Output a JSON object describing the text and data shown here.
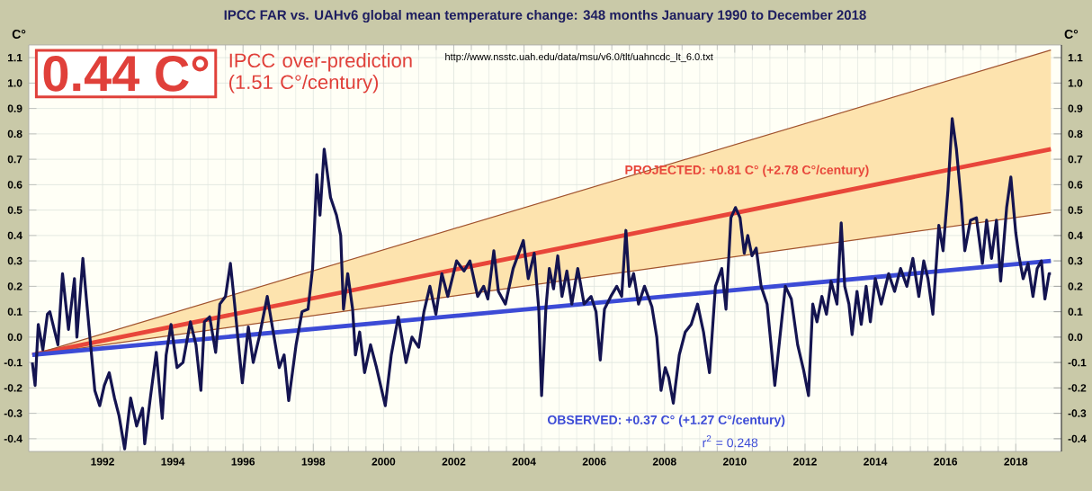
{
  "chart_data": {
    "type": "line",
    "title": "IPCC FAR vs. UAHv6 global mean temperature change: 348 months January 1990 to December 2018",
    "ylabel": "C°",
    "y2label": "C°",
    "annotations": [
      "0.44 C°",
      "IPCC over-prediction (1.51 C°/century)",
      "http://www.nsstc.uah.edu/data/msu/v6.0/tlt/uahncdc_lt_6.0.txt",
      "PROJECTED: +0.81 C° (+2.78 C°/century)",
      "OBSERVED: +0.37 C° (+1.27 C°/century)",
      "r$^{2}$ = 0.248"
    ],
    "xlim": [
      1989.9,
      2019.3
    ],
    "xticks": [
      1992,
      1994,
      1996,
      1998,
      2000,
      2002,
      2004,
      2006,
      2008,
      2010,
      2012,
      2014,
      2016,
      2018
    ],
    "ylim": [
      -0.45,
      1.15
    ],
    "yticks": [
      -0.4,
      -0.3,
      -0.2,
      -0.1,
      {
        "value": 0,
        "label": "0.0"
      },
      0.1,
      0.2,
      0.3,
      0.4,
      0.5,
      0.6,
      0.7,
      0.8,
      0.9,
      {
        "value": 1,
        "label": "1.0"
      },
      1.1
    ],
    "y2lim": [
      -0.45,
      1.15
    ],
    "y2ticks": [
      -0.4,
      -0.3,
      -0.2,
      -0.1,
      {
        "value": 0,
        "label": "0.0"
      },
      0.1,
      0.2,
      0.3,
      0.4,
      0.5,
      0.6,
      0.7,
      0.8,
      0.9,
      {
        "value": 1,
        "label": "1.0"
      },
      1.1
    ],
    "grid": true,
    "marker": "none",
    "line_style": "solid",
    "series": [
      {
        "color": "#e8463a",
        "x": [
          1990,
          2019
        ],
        "values": [
          -0.07,
          0.74
        ],
        "lower": [
          -0.07,
          0.49
        ],
        "upper": [
          -0.07,
          1.13
        ]
      },
      {
        "color": "#a0522d",
        "x": [
          1990,
          2019
        ],
        "values": [
          -0.07,
          1.13
        ]
      },
      {
        "color": "#a0522d",
        "x": [
          1990,
          2019
        ],
        "values": [
          -0.07,
          0.49
        ]
      },
      {
        "color": "#3c4bd6",
        "x": [
          1990,
          2019
        ],
        "values": [
          -0.07,
          0.3
        ]
      },
      {
        "color": "#141450",
        "x": [
          1990.0,
          1990.08,
          1990.17,
          1990.3,
          1990.43,
          1990.5,
          1990.73,
          1990.86,
          1991.03,
          1991.2,
          1991.27,
          1991.44,
          1991.54,
          1991.66,
          1991.78,
          1991.92,
          1992.05,
          1992.19,
          1992.34,
          1992.47,
          1992.63,
          1992.8,
          1992.97,
          1993.14,
          1993.2,
          1993.36,
          1993.53,
          1993.7,
          1993.81,
          1993.95,
          1994.12,
          1994.29,
          1994.5,
          1994.66,
          1994.8,
          1994.9,
          1995.05,
          1995.22,
          1995.34,
          1995.5,
          1995.64,
          1995.76,
          1995.9,
          1995.98,
          1996.15,
          1996.29,
          1996.46,
          1996.69,
          1996.86,
          1997.03,
          1997.17,
          1997.3,
          1997.51,
          1997.68,
          1997.85,
          1997.98,
          1998.1,
          1998.19,
          1998.31,
          1998.49,
          1998.66,
          1998.78,
          1998.86,
          1998.98,
          1999.12,
          1999.2,
          1999.32,
          1999.46,
          1999.63,
          1999.8,
          2000.05,
          2000.22,
          2000.42,
          2000.64,
          2000.81,
          2001.0,
          2001.15,
          2001.32,
          2001.49,
          2001.66,
          2001.83,
          2002.08,
          2002.29,
          2002.46,
          2002.68,
          2002.85,
          2002.97,
          2003.14,
          2003.27,
          2003.47,
          2003.69,
          2003.98,
          2004.12,
          2004.29,
          2004.42,
          2004.5,
          2004.62,
          2004.72,
          2004.84,
          2004.96,
          2005.08,
          2005.22,
          2005.36,
          2005.53,
          2005.71,
          2005.91,
          2006.05,
          2006.17,
          2006.29,
          2006.47,
          2006.64,
          2006.78,
          2006.9,
          2007.0,
          2007.12,
          2007.26,
          2007.43,
          2007.64,
          2007.78,
          2007.9,
          2008.02,
          2008.12,
          2008.25,
          2008.42,
          2008.59,
          2008.76,
          2008.94,
          2009.11,
          2009.28,
          2009.45,
          2009.63,
          2009.75,
          2009.89,
          2010.02,
          2010.15,
          2010.27,
          2010.37,
          2010.49,
          2010.61,
          2010.75,
          2010.92,
          2011.06,
          2011.14,
          2011.27,
          2011.44,
          2011.61,
          2011.79,
          2011.96,
          2012.1,
          2012.22,
          2012.34,
          2012.48,
          2012.61,
          2012.74,
          2012.91,
          2013.03,
          2013.13,
          2013.25,
          2013.34,
          2013.48,
          2013.6,
          2013.74,
          2013.86,
          2014.0,
          2014.17,
          2014.38,
          2014.55,
          2014.72,
          2014.9,
          2015.07,
          2015.24,
          2015.38,
          2015.5,
          2015.64,
          2015.81,
          2015.93,
          2016.07,
          2016.19,
          2016.31,
          2016.45,
          2016.55,
          2016.71,
          2016.88,
          2017.05,
          2017.17,
          2017.31,
          2017.45,
          2017.57,
          2017.74,
          2017.86,
          2018.0,
          2018.09,
          2018.21,
          2018.35,
          2018.49,
          2018.61,
          2018.73,
          2018.83,
          2018.95,
          2019.0
        ],
        "values": [
          -0.1,
          -0.19,
          0.05,
          -0.05,
          0.09,
          0.1,
          -0.03,
          0.25,
          0.03,
          0.23,
          0.0,
          0.31,
          0.15,
          -0.03,
          -0.21,
          -0.27,
          -0.19,
          -0.14,
          -0.24,
          -0.31,
          -0.44,
          -0.24,
          -0.35,
          -0.28,
          -0.42,
          -0.24,
          -0.06,
          -0.32,
          -0.07,
          0.05,
          -0.12,
          -0.1,
          0.06,
          -0.03,
          -0.21,
          0.06,
          0.08,
          -0.06,
          0.13,
          0.16,
          0.29,
          0.13,
          -0.07,
          -0.18,
          0.04,
          -0.1,
          0.0,
          0.16,
          0.02,
          -0.12,
          -0.07,
          -0.25,
          -0.03,
          0.1,
          0.11,
          0.27,
          0.64,
          0.48,
          0.74,
          0.55,
          0.48,
          0.4,
          0.11,
          0.25,
          0.11,
          -0.07,
          0.02,
          -0.14,
          -0.03,
          -0.12,
          -0.27,
          -0.07,
          0.08,
          -0.1,
          0.0,
          -0.04,
          0.1,
          0.2,
          0.09,
          0.25,
          0.16,
          0.3,
          0.26,
          0.3,
          0.16,
          0.2,
          0.15,
          0.34,
          0.18,
          0.13,
          0.27,
          0.38,
          0.23,
          0.33,
          0.11,
          -0.23,
          0.11,
          0.27,
          0.19,
          0.32,
          0.16,
          0.26,
          0.13,
          0.27,
          0.13,
          0.16,
          0.1,
          -0.09,
          0.11,
          0.16,
          0.2,
          0.16,
          0.42,
          0.2,
          0.25,
          0.13,
          0.2,
          0.12,
          0.0,
          -0.21,
          -0.12,
          -0.16,
          -0.26,
          -0.07,
          0.02,
          0.05,
          0.13,
          0.02,
          -0.14,
          0.2,
          0.27,
          0.11,
          0.47,
          0.51,
          0.47,
          0.33,
          0.4,
          0.32,
          0.35,
          0.2,
          0.13,
          -0.07,
          -0.19,
          -0.02,
          0.2,
          0.15,
          -0.03,
          -0.13,
          -0.23,
          0.13,
          0.06,
          0.16,
          0.09,
          0.22,
          0.13,
          0.45,
          0.2,
          0.13,
          0.01,
          0.18,
          0.05,
          0.2,
          0.06,
          0.23,
          0.13,
          0.25,
          0.18,
          0.27,
          0.2,
          0.31,
          0.16,
          0.3,
          0.23,
          0.09,
          0.44,
          0.34,
          0.58,
          0.86,
          0.74,
          0.53,
          0.34,
          0.46,
          0.47,
          0.29,
          0.46,
          0.31,
          0.46,
          0.22,
          0.51,
          0.63,
          0.41,
          0.32,
          0.23,
          0.29,
          0.16,
          0.27,
          0.3,
          0.15,
          0.25,
          0.25
        ]
      }
    ]
  }
}
